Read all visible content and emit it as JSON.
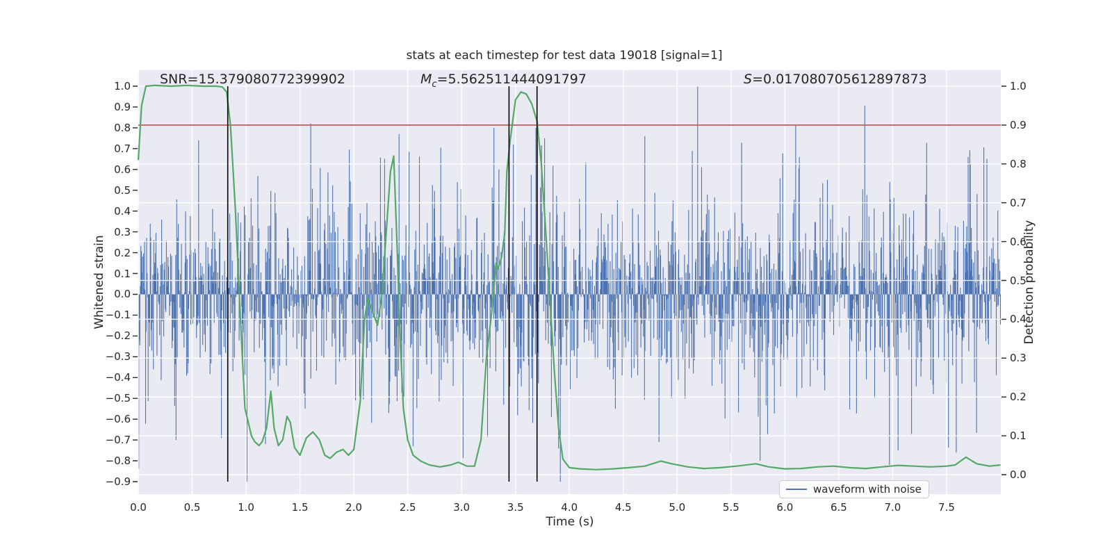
{
  "title": "stats at each timestep for test data 19018 [signal=1]",
  "annotations": {
    "snr": "SNR=15.379080772399902",
    "mc_var": "M",
    "mc_sub": "c",
    "mc_rest": "=5.562511444091797",
    "s_var": "S",
    "s_rest": "=0.017080705612897873"
  },
  "axes": {
    "x": {
      "label": "Time (s)",
      "tick_labels": [
        "0.0",
        "0.5",
        "1.0",
        "1.5",
        "2.0",
        "2.5",
        "3.0",
        "3.5",
        "4.0",
        "4.5",
        "5.0",
        "5.5",
        "6.0",
        "6.5",
        "7.0",
        "7.5"
      ],
      "tick_values": [
        0,
        0.5,
        1,
        1.5,
        2,
        2.5,
        3,
        3.5,
        4,
        4.5,
        5,
        5.5,
        6,
        6.5,
        7,
        7.5
      ]
    },
    "y_left": {
      "label": "Whitened strain",
      "tick_labels": [
        "1.0",
        "0.9",
        "0.8",
        "0.7",
        "0.6",
        "0.5",
        "0.4",
        "0.3",
        "0.2",
        "0.1",
        "0.0",
        "−0.1",
        "−0.2",
        "−0.3",
        "−0.4",
        "−0.5",
        "−0.6",
        "−0.7",
        "−0.8",
        "−0.9"
      ],
      "tick_values": [
        1.0,
        0.9,
        0.8,
        0.7,
        0.6,
        0.5,
        0.4,
        0.3,
        0.2,
        0.1,
        0.0,
        -0.1,
        -0.2,
        -0.3,
        -0.4,
        -0.5,
        -0.6,
        -0.7,
        -0.8,
        -0.9
      ]
    },
    "y_right": {
      "label": "Detection probability",
      "tick_labels": [
        "1.0",
        "0.9",
        "0.8",
        "0.7",
        "0.6",
        "0.5",
        "0.4",
        "0.3",
        "0.2",
        "0.1",
        "0.0"
      ],
      "tick_values": [
        1.0,
        0.9,
        0.8,
        0.7,
        0.6,
        0.5,
        0.4,
        0.3,
        0.2,
        0.1,
        0.0
      ]
    }
  },
  "legend": {
    "label": "waveform with noise",
    "line_color": "#4c72b0"
  },
  "colors": {
    "plot_background": "#eaeaf2",
    "grid": "#ffffff",
    "noise": "#4c72b0",
    "probability": "#55a868",
    "threshold": "#c44e52",
    "marker": "#000000",
    "text": "#262626"
  },
  "chart_data": {
    "type": "line",
    "title": "stats at each timestep for test data 19018 [signal=1]",
    "xlabel": "Time (s)",
    "ylabel_left": "Whitened strain",
    "ylabel_right": "Detection probability",
    "xlim": [
      0,
      8.0
    ],
    "ylim_left": [
      -0.96,
      1.08
    ],
    "ylim_right": [
      -0.03,
      1.04
    ],
    "grid": true,
    "legend_position": "lower right",
    "stats": {
      "SNR": 15.379080772399902,
      "Mc": 5.562511444091797,
      "S": 0.017080705612897873
    },
    "series": [
      {
        "name": "waveform with noise",
        "axis": "left",
        "color": "#4c72b0",
        "style": "noise",
        "noise_seed": 190181,
        "noise_samples": 1660,
        "noise_sigma_core": 0.21,
        "noise_sigma_tail": 0.38,
        "noise_tail_fraction": 0.15,
        "noise_clip": [
          -0.9,
          1.0
        ],
        "noise_spikes": [
          [
            0.35,
            -0.7
          ],
          [
            0.56,
            0.74
          ],
          [
            1.18,
            -0.72
          ],
          [
            1.6,
            0.82
          ],
          [
            2.42,
            0.77
          ],
          [
            2.55,
            -0.73
          ],
          [
            3.3,
            0.8
          ],
          [
            3.48,
            0.72
          ],
          [
            3.77,
            0.75
          ],
          [
            3.9,
            -0.74
          ],
          [
            4.7,
            0.76
          ],
          [
            5.19,
            1.0
          ],
          [
            5.77,
            -0.8
          ],
          [
            6.1,
            0.81
          ],
          [
            6.97,
            -0.82
          ],
          [
            7.05,
            -0.75
          ],
          [
            7.59,
            -0.76
          ],
          [
            7.7,
            0.66
          ]
        ]
      },
      {
        "name": "detection probability",
        "axis": "right",
        "color": "#55a868",
        "style": "line",
        "points": [
          [
            0,
            0.81
          ],
          [
            0.03,
            0.95
          ],
          [
            0.07,
            1.0
          ],
          [
            0.15,
            1.002
          ],
          [
            0.3,
            1.0
          ],
          [
            0.45,
            1.002
          ],
          [
            0.6,
            1.0
          ],
          [
            0.72,
            1.0
          ],
          [
            0.78,
            0.998
          ],
          [
            0.82,
            0.985
          ],
          [
            0.855,
            0.9
          ],
          [
            0.9,
            0.685
          ],
          [
            0.93,
            0.51
          ],
          [
            0.96,
            0.33
          ],
          [
            0.99,
            0.17
          ],
          [
            1.02,
            0.135
          ],
          [
            1.05,
            0.1
          ],
          [
            1.08,
            0.085
          ],
          [
            1.12,
            0.075
          ],
          [
            1.15,
            0.085
          ],
          [
            1.19,
            0.12
          ],
          [
            1.23,
            0.215
          ],
          [
            1.26,
            0.12
          ],
          [
            1.3,
            0.075
          ],
          [
            1.34,
            0.09
          ],
          [
            1.38,
            0.15
          ],
          [
            1.41,
            0.135
          ],
          [
            1.45,
            0.07
          ],
          [
            1.5,
            0.05
          ],
          [
            1.56,
            0.095
          ],
          [
            1.62,
            0.11
          ],
          [
            1.68,
            0.09
          ],
          [
            1.73,
            0.05
          ],
          [
            1.78,
            0.042
          ],
          [
            1.84,
            0.058
          ],
          [
            1.9,
            0.065
          ],
          [
            1.95,
            0.05
          ],
          [
            2.0,
            0.065
          ],
          [
            2.06,
            0.19
          ],
          [
            2.1,
            0.4
          ],
          [
            2.13,
            0.455
          ],
          [
            2.18,
            0.415
          ],
          [
            2.22,
            0.385
          ],
          [
            2.26,
            0.46
          ],
          [
            2.3,
            0.62
          ],
          [
            2.34,
            0.78
          ],
          [
            2.37,
            0.82
          ],
          [
            2.4,
            0.6
          ],
          [
            2.43,
            0.35
          ],
          [
            2.46,
            0.17
          ],
          [
            2.5,
            0.09
          ],
          [
            2.55,
            0.05
          ],
          [
            2.62,
            0.035
          ],
          [
            2.7,
            0.025
          ],
          [
            2.8,
            0.02
          ],
          [
            2.9,
            0.025
          ],
          [
            2.97,
            0.032
          ],
          [
            3.05,
            0.022
          ],
          [
            3.12,
            0.022
          ],
          [
            3.18,
            0.09
          ],
          [
            3.23,
            0.3
          ],
          [
            3.28,
            0.42
          ],
          [
            3.32,
            0.545
          ],
          [
            3.34,
            0.53
          ],
          [
            3.37,
            0.56
          ],
          [
            3.4,
            0.62
          ],
          [
            3.42,
            0.78
          ],
          [
            3.45,
            0.86
          ],
          [
            3.5,
            0.965
          ],
          [
            3.55,
            0.985
          ],
          [
            3.6,
            0.98
          ],
          [
            3.65,
            0.955
          ],
          [
            3.7,
            0.91
          ],
          [
            3.74,
            0.8
          ],
          [
            3.78,
            0.63
          ],
          [
            3.82,
            0.45
          ],
          [
            3.86,
            0.27
          ],
          [
            3.9,
            0.12
          ],
          [
            3.94,
            0.04
          ],
          [
            4.0,
            0.018
          ],
          [
            4.1,
            0.015
          ],
          [
            4.25,
            0.013
          ],
          [
            4.4,
            0.015
          ],
          [
            4.55,
            0.018
          ],
          [
            4.7,
            0.022
          ],
          [
            4.85,
            0.035
          ],
          [
            4.95,
            0.028
          ],
          [
            5.1,
            0.02
          ],
          [
            5.25,
            0.016
          ],
          [
            5.4,
            0.018
          ],
          [
            5.55,
            0.022
          ],
          [
            5.73,
            0.028
          ],
          [
            5.85,
            0.02
          ],
          [
            6.0,
            0.015
          ],
          [
            6.15,
            0.016
          ],
          [
            6.3,
            0.02
          ],
          [
            6.45,
            0.022
          ],
          [
            6.6,
            0.018
          ],
          [
            6.75,
            0.016
          ],
          [
            6.9,
            0.02
          ],
          [
            7.05,
            0.024
          ],
          [
            7.2,
            0.022
          ],
          [
            7.35,
            0.02
          ],
          [
            7.5,
            0.022
          ],
          [
            7.58,
            0.025
          ],
          [
            7.68,
            0.045
          ],
          [
            7.78,
            0.028
          ],
          [
            7.9,
            0.022
          ],
          [
            8.0,
            0.025
          ]
        ]
      },
      {
        "name": "detection threshold",
        "axis": "right",
        "color": "#c44e52",
        "style": "hline",
        "y": 0.9
      },
      {
        "name": "event window markers",
        "axis": "x",
        "color": "#000000",
        "style": "vlines",
        "x": [
          0.83,
          3.44,
          3.7
        ],
        "span_left_axis": [
          -0.9,
          1.0
        ]
      }
    ]
  }
}
